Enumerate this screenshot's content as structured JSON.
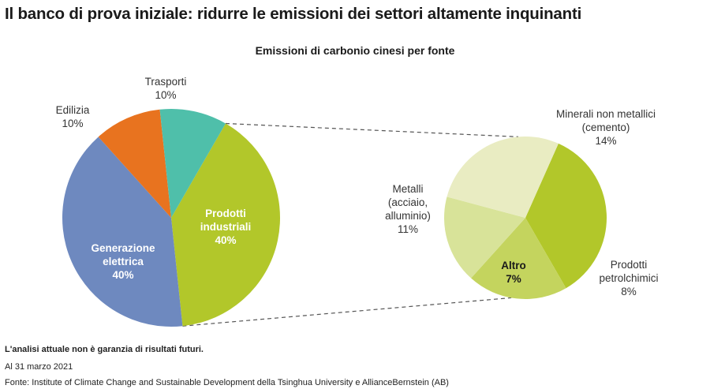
{
  "title": "Il banco di prova iniziale: ridurre le emissioni dei settori altamente inquinanti",
  "footnote": {
    "disclaimer": "L'analisi attuale non è garanzia di risultati futuri.",
    "date": "Al 31 marzo 2021",
    "source": "Fonte: Institute of Climate Change and Sustainable Development della Tsinghua University e AllianceBernstein (AB)"
  },
  "chart_data": [
    {
      "type": "pie",
      "title": "Emissioni di carbonio cinesi per fonte",
      "slices": [
        {
          "label": [
            "Prodotti",
            "industriali"
          ],
          "value": 40,
          "value_label": "40%",
          "color": "#b2c72a",
          "label_style": "inside"
        },
        {
          "label": [
            "Generazione",
            "elettrica"
          ],
          "value": 40,
          "value_label": "40%",
          "color": "#6e89bf",
          "label_style": "inside"
        },
        {
          "label": [
            "Edilizia"
          ],
          "value": 10,
          "value_label": "10%",
          "color": "#e8731f",
          "label_style": "outside"
        },
        {
          "label": [
            "Trasporti"
          ],
          "value": 10,
          "value_label": "10%",
          "color": "#4fbfaa",
          "label_style": "outside"
        }
      ]
    },
    {
      "type": "pie",
      "title": "",
      "breakdown_of": "Prodotti industriali",
      "slices": [
        {
          "label": [
            "Minerali non metallici",
            "(cemento)"
          ],
          "value": 14,
          "value_label": "14%",
          "color": "#b2c72a",
          "label_style": "outside"
        },
        {
          "label": [
            "Prodotti",
            "petrolchimici"
          ],
          "value": 8,
          "value_label": "8%",
          "color": "#c4d45e",
          "label_style": "outside"
        },
        {
          "label": [
            "Altro"
          ],
          "value": 7,
          "value_label": "7%",
          "color": "#d8e399",
          "label_style": "inside"
        },
        {
          "label": [
            "Metalli",
            "(acciaio,",
            "alluminio)"
          ],
          "value": 11,
          "value_label": "11%",
          "color": "#e9ecc2",
          "label_style": "outside"
        }
      ]
    }
  ]
}
